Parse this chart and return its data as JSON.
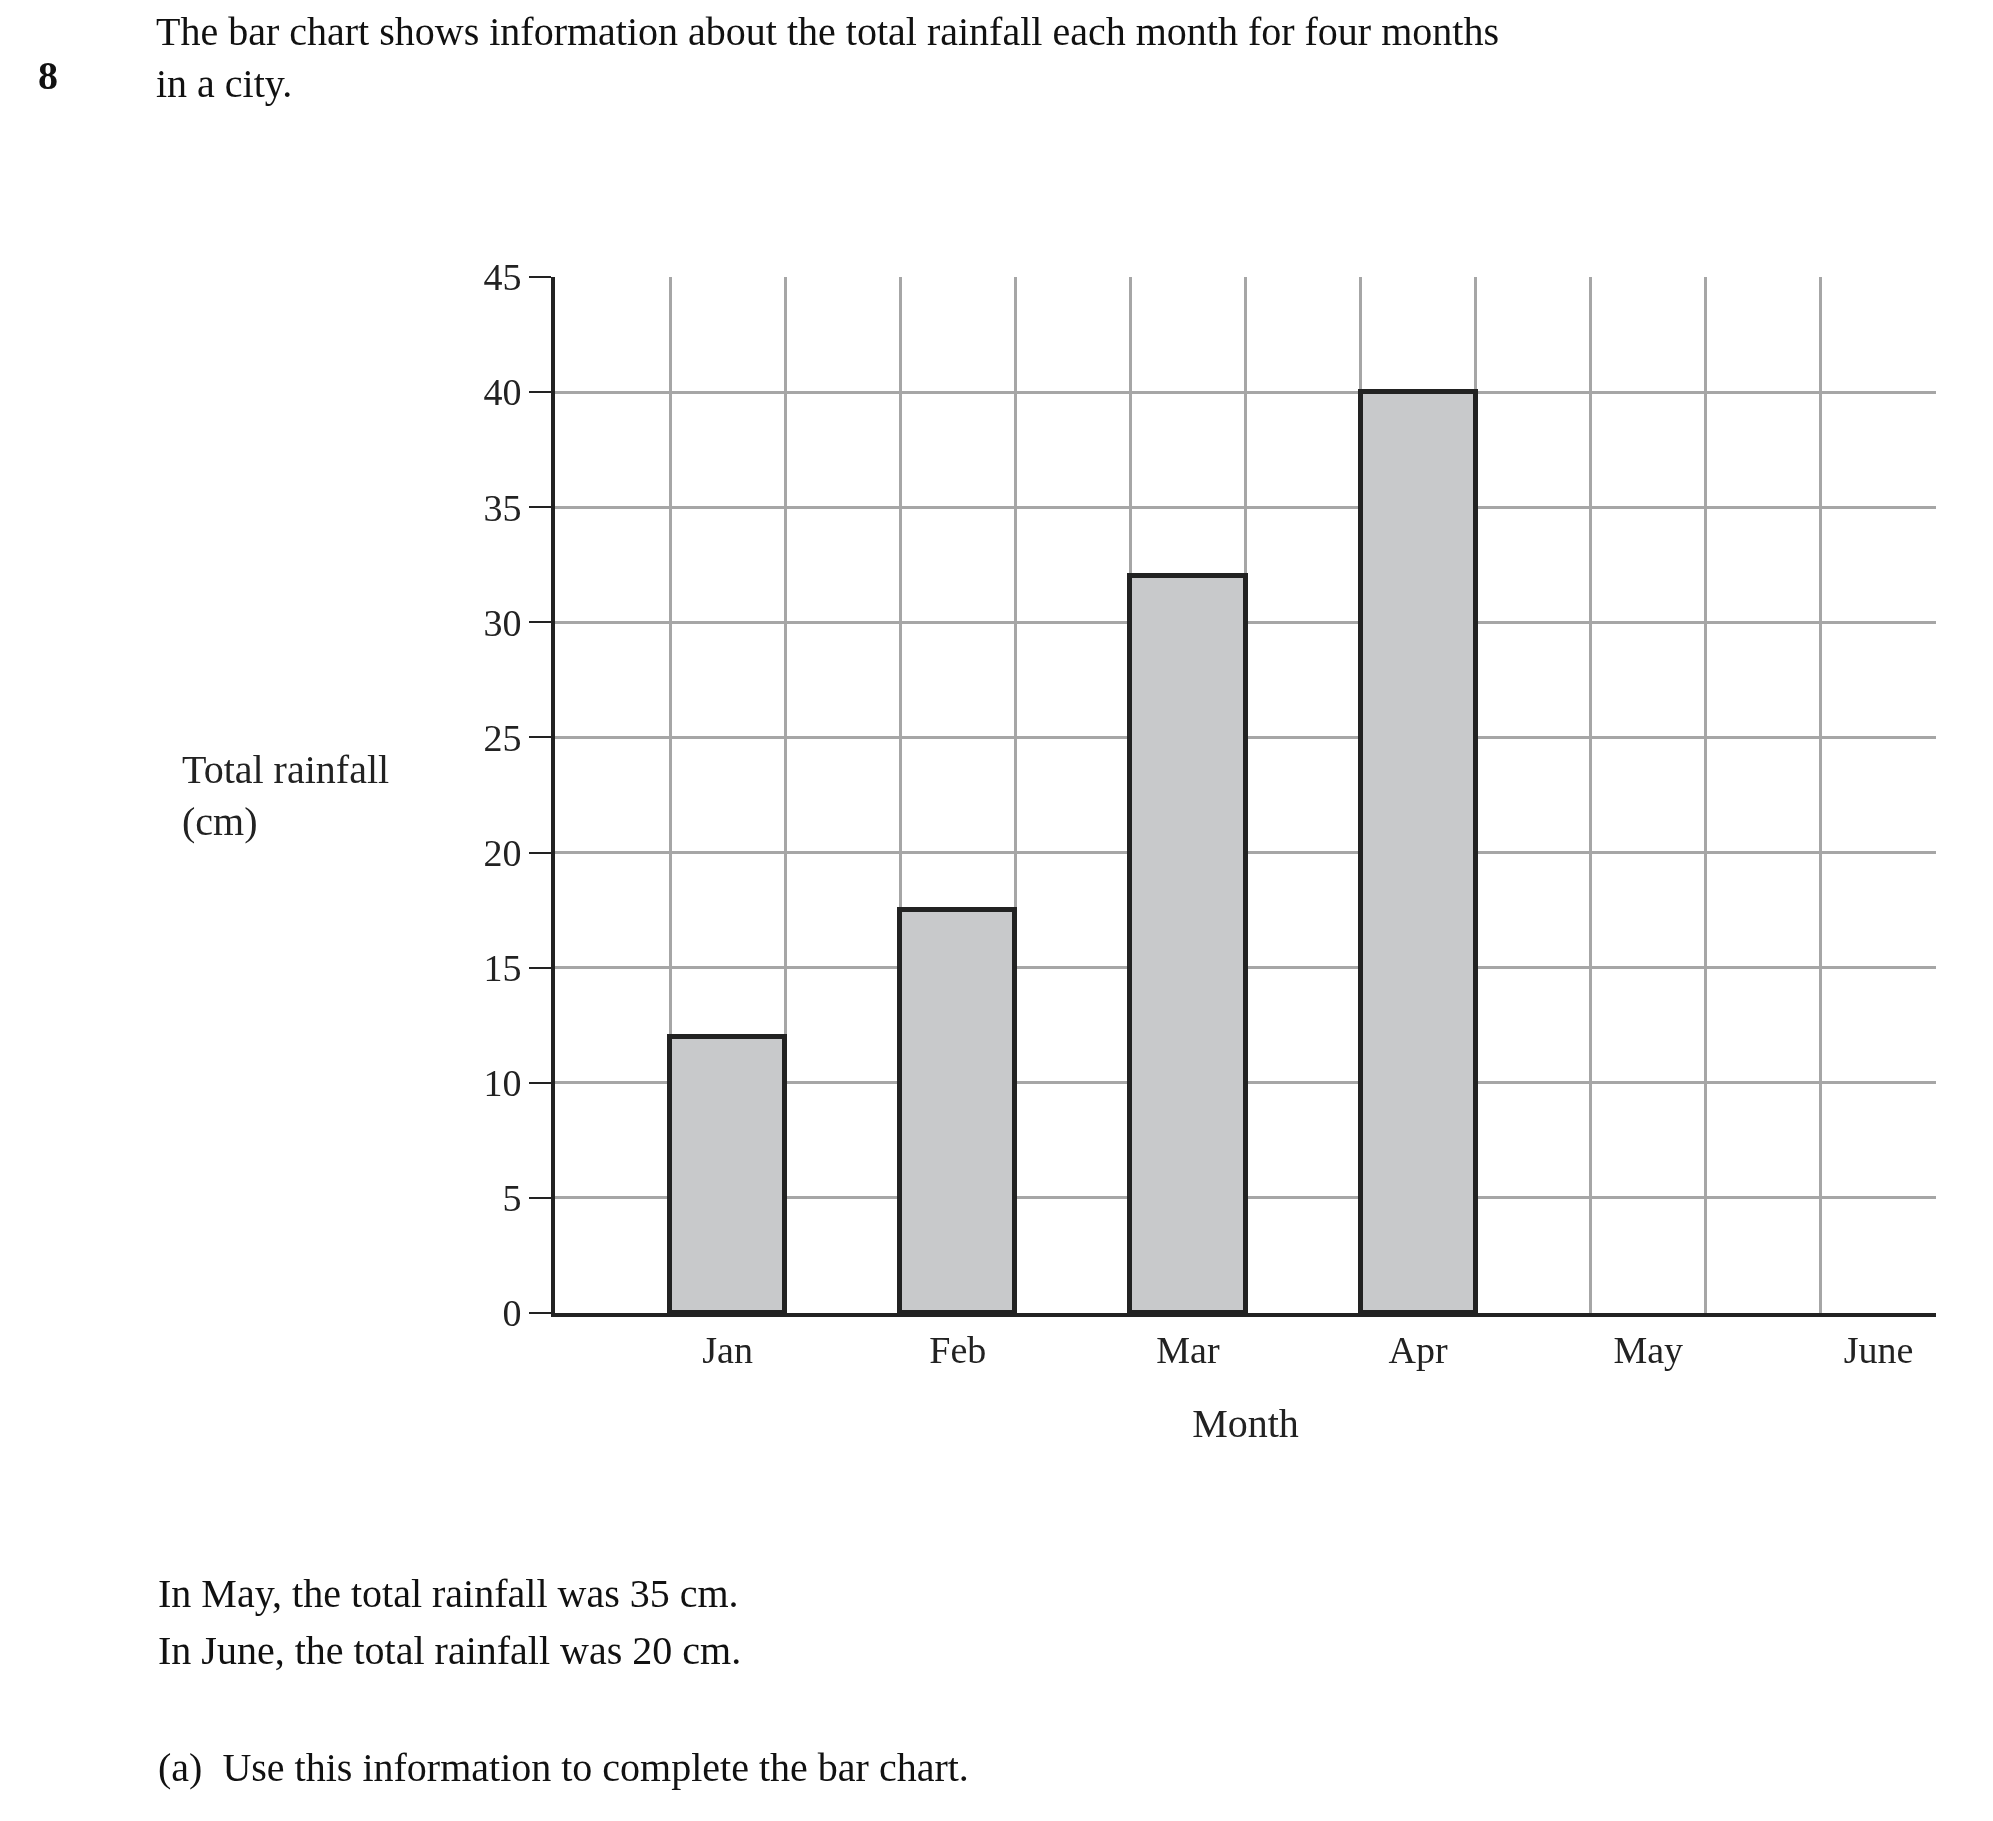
{
  "chart_data": {
    "type": "bar",
    "title": "The bar chart shows information about the total rainfall each month for four months\nin a city.",
    "xlabel": "Month",
    "ylabel": "Total rainfall\n(cm)",
    "categories": [
      "Jan",
      "Feb",
      "Mar",
      "Apr",
      "May",
      "June"
    ],
    "values": [
      12,
      17.5,
      32,
      40,
      null,
      null
    ],
    "color": "#c8c9cb",
    "ylim": [
      0,
      45
    ],
    "yticks": [
      0,
      5,
      10,
      15,
      20,
      25,
      30,
      35,
      40,
      45
    ],
    "grid": true,
    "annotations": [
      "8",
      "In May, the total rainfall was 35 cm.",
      "In June, the total rainfall was 20 cm.",
      "(a)  Use this information to complete the bar chart."
    ]
  }
}
